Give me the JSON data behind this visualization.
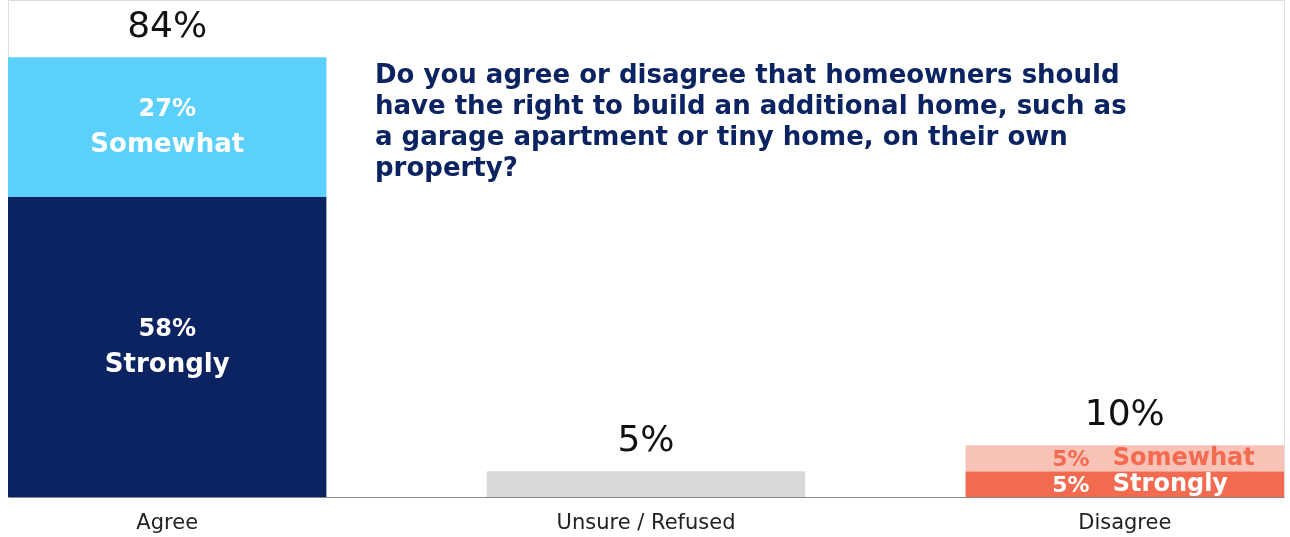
{
  "chart_data": {
    "type": "bar",
    "stacked": true,
    "title": "Do you agree or disagree that homeowners should have the right to build an additional home, such as a garage apartment or tiny home, on their own property?",
    "categories": [
      "Agree",
      "Unsure / Refused",
      "Disagree"
    ],
    "series": [
      {
        "name": "Strongly",
        "colors": [
          "#0b2461",
          null,
          "#f26b50"
        ],
        "values": [
          58,
          null,
          5
        ],
        "value_labels": [
          "58%",
          null,
          "5%"
        ]
      },
      {
        "name": "Somewhat",
        "colors": [
          "#5bd0fb",
          null,
          "#f9c2b6"
        ],
        "values": [
          27,
          null,
          5
        ],
        "value_labels": [
          "27%",
          null,
          "5%"
        ]
      },
      {
        "colors": [
          null,
          "#d9d9d9",
          null
        ],
        "values": [
          null,
          5,
          null
        ]
      }
    ],
    "totals": [
      "84%",
      "5%",
      "10%"
    ],
    "tick_labels": "x",
    "grid": false
  }
}
